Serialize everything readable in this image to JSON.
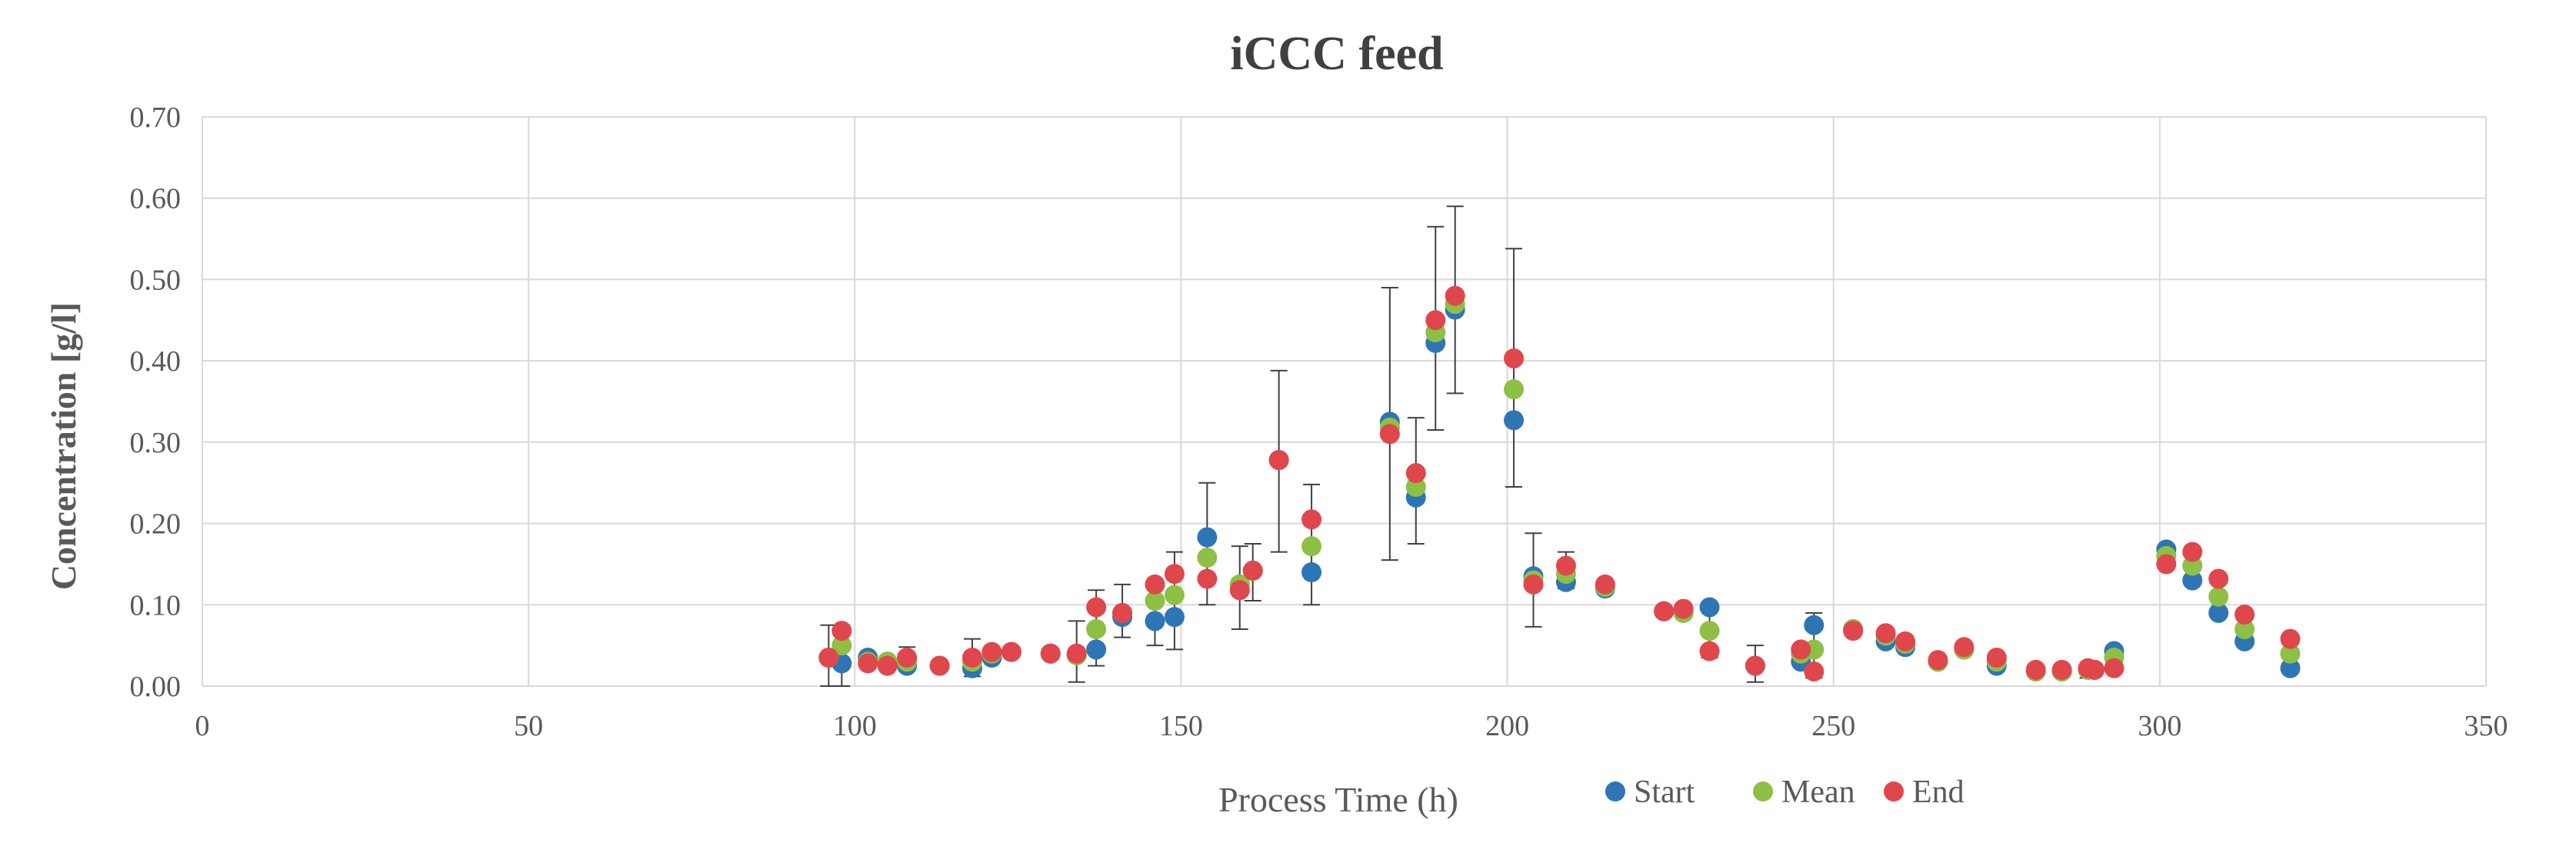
{
  "chart_data": {
    "type": "scatter",
    "title": "iCCC feed",
    "xlabel": "Process Time (h)",
    "ylabel": "Concentration [g/l]",
    "xlim": [
      0,
      350
    ],
    "ylim": [
      0,
      0.7
    ],
    "xticks": [
      0,
      50,
      100,
      150,
      200,
      250,
      300,
      350
    ],
    "yticks": [
      0.0,
      0.1,
      0.2,
      0.3,
      0.4,
      0.5,
      0.6,
      0.7
    ],
    "xtick_labels": [
      "0",
      "50",
      "100",
      "150",
      "200",
      "250",
      "300",
      "350"
    ],
    "ytick_labels": [
      "0.00",
      "0.10",
      "0.20",
      "0.30",
      "0.40",
      "0.50",
      "0.60",
      "0.70"
    ],
    "grid": true,
    "legend_position": "bottom-center",
    "x": [
      96,
      98,
      102,
      105,
      108,
      113,
      118,
      121,
      124,
      130,
      134,
      137,
      141,
      146,
      149,
      154,
      159,
      161,
      165,
      170,
      182,
      186,
      189,
      192,
      201,
      204,
      209,
      215,
      224,
      227,
      231,
      238,
      245,
      247,
      253,
      258,
      261,
      266,
      270,
      275,
      281,
      285,
      289,
      290,
      293,
      301,
      305,
      309,
      313,
      320
    ],
    "series": [
      {
        "name": "Start",
        "color": "#2E75B6",
        "values": [
          0.035,
          0.028,
          0.035,
          0.03,
          0.025,
          0.025,
          0.022,
          0.035,
          0.042,
          0.04,
          0.038,
          0.045,
          0.085,
          0.08,
          0.085,
          0.183,
          0.125,
          0.142,
          0.278,
          0.14,
          0.325,
          0.232,
          0.422,
          0.463,
          0.327,
          0.135,
          0.128,
          0.12,
          0.092,
          0.09,
          0.097,
          0.025,
          0.03,
          0.075,
          0.07,
          0.055,
          0.048,
          0.03,
          0.045,
          0.025,
          0.018,
          0.018,
          0.02,
          0.02,
          0.043,
          0.168,
          0.13,
          0.09,
          0.055,
          0.022
        ]
      },
      {
        "name": "Mean",
        "color": "#8DC044",
        "values": [
          0.035,
          0.05,
          0.03,
          0.03,
          0.03,
          0.025,
          0.03,
          0.04,
          0.042,
          0.04,
          0.038,
          0.07,
          0.09,
          0.105,
          0.112,
          0.158,
          0.125,
          0.142,
          0.278,
          0.172,
          0.318,
          0.245,
          0.435,
          0.47,
          0.365,
          0.13,
          0.138,
          0.122,
          0.092,
          0.09,
          0.068,
          0.025,
          0.04,
          0.045,
          0.07,
          0.062,
          0.052,
          0.03,
          0.045,
          0.03,
          0.018,
          0.018,
          0.02,
          0.02,
          0.035,
          0.16,
          0.148,
          0.11,
          0.07,
          0.04
        ]
      },
      {
        "name": "End",
        "color": "#E0474C",
        "values": [
          0.035,
          0.068,
          0.028,
          0.025,
          0.035,
          0.025,
          0.035,
          0.042,
          0.042,
          0.04,
          0.04,
          0.097,
          0.09,
          0.125,
          0.138,
          0.132,
          0.118,
          0.142,
          0.278,
          0.205,
          0.31,
          0.262,
          0.45,
          0.48,
          0.403,
          0.125,
          0.148,
          0.125,
          0.092,
          0.095,
          0.043,
          0.025,
          0.045,
          0.018,
          0.068,
          0.065,
          0.055,
          0.032,
          0.048,
          0.035,
          0.02,
          0.02,
          0.022,
          0.02,
          0.022,
          0.15,
          0.165,
          0.132,
          0.088,
          0.058
        ]
      }
    ],
    "error_bars": [
      {
        "x": 96,
        "low": 0.0,
        "high": 0.075
      },
      {
        "x": 98,
        "low": 0.0,
        "high": 0.075
      },
      {
        "x": 108,
        "low": 0.025,
        "high": 0.048
      },
      {
        "x": 118,
        "low": 0.012,
        "high": 0.058
      },
      {
        "x": 134,
        "low": 0.005,
        "high": 0.08
      },
      {
        "x": 137,
        "low": 0.025,
        "high": 0.118
      },
      {
        "x": 141,
        "low": 0.06,
        "high": 0.125
      },
      {
        "x": 146,
        "low": 0.05,
        "high": 0.13
      },
      {
        "x": 149,
        "low": 0.045,
        "high": 0.165
      },
      {
        "x": 154,
        "low": 0.1,
        "high": 0.25
      },
      {
        "x": 159,
        "low": 0.07,
        "high": 0.172
      },
      {
        "x": 161,
        "low": 0.105,
        "high": 0.175
      },
      {
        "x": 165,
        "low": 0.165,
        "high": 0.388
      },
      {
        "x": 170,
        "low": 0.1,
        "high": 0.248
      },
      {
        "x": 182,
        "low": 0.155,
        "high": 0.49
      },
      {
        "x": 186,
        "low": 0.175,
        "high": 0.33
      },
      {
        "x": 189,
        "low": 0.315,
        "high": 0.565
      },
      {
        "x": 192,
        "low": 0.36,
        "high": 0.59
      },
      {
        "x": 201,
        "low": 0.245,
        "high": 0.538
      },
      {
        "x": 204,
        "low": 0.073,
        "high": 0.188
      },
      {
        "x": 209,
        "low": 0.12,
        "high": 0.165
      },
      {
        "x": 231,
        "low": 0.035,
        "high": 0.1
      },
      {
        "x": 238,
        "low": 0.005,
        "high": 0.05
      },
      {
        "x": 247,
        "low": 0.01,
        "high": 0.09
      },
      {
        "x": 289,
        "low": 0.01,
        "high": 0.025
      }
    ]
  }
}
